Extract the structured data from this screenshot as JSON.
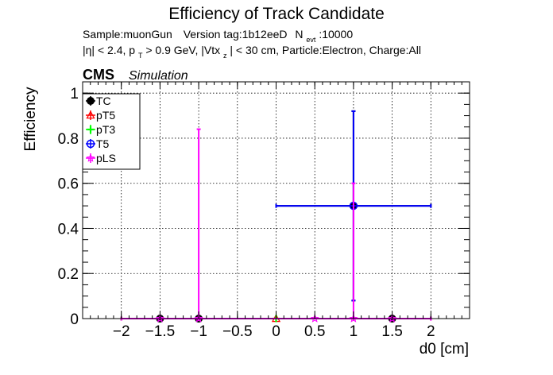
{
  "chart_data": {
    "type": "scatter",
    "title": "Efficiency of Track Candidate",
    "subtitle_line1": {
      "sample": "Sample:muonGun",
      "version": "Version tag:1b12eeD",
      "n_label": "N",
      "n_sub": "evt",
      "n_value": ":10000"
    },
    "subtitle_line2": {
      "eta": "|η| < 2.4, p",
      "pt_sub": "T",
      "pt_cut": " > 0.9 GeV, |Vtx",
      "vtx_sub": "z",
      "rest": "| < 30 cm, Particle:Electron, Charge:All"
    },
    "cms_label": "CMS",
    "simulation_label": "Simulation",
    "xlabel": "d0 [cm]",
    "ylabel": "Efficiency",
    "xlim": [
      -2.5,
      2.5
    ],
    "ylim": [
      0,
      1.05
    ],
    "xticks": [
      -2,
      -1.5,
      -1,
      -0.5,
      0,
      0.5,
      1,
      1.5,
      2
    ],
    "xtick_labels": [
      "−2",
      "−1.5",
      "−1",
      "−0.5",
      "0",
      "0.5",
      "1",
      "1.5",
      "2"
    ],
    "yticks": [
      0,
      0.2,
      0.4,
      0.6,
      0.8,
      1
    ],
    "ytick_labels": [
      "0",
      "0.2",
      "0.4",
      "0.6",
      "0.8",
      "1"
    ],
    "grid": true,
    "legend_position": "top-left",
    "series": [
      {
        "name": "TC",
        "color": "#000000",
        "marker": "circle",
        "points": [
          {
            "x": -1.5,
            "xerr": 0.5,
            "y": 0,
            "ylo": 0,
            "yhi": 0
          },
          {
            "x": -1,
            "xerr": 0,
            "y": 0,
            "ylo": 0,
            "yhi": 0
          },
          {
            "x": 1,
            "xerr": 1,
            "y": 0.5,
            "ylo": 0.08,
            "yhi": 0.92
          },
          {
            "x": 1.5,
            "xerr": 0.5,
            "y": 0,
            "ylo": 0,
            "yhi": 0
          }
        ]
      },
      {
        "name": "pT5",
        "color": "#ff0000",
        "marker": "triangle",
        "points": [
          {
            "x": 0,
            "xerr": 2,
            "y": 0,
            "ylo": 0,
            "yhi": 0
          }
        ]
      },
      {
        "name": "pT3",
        "color": "#00ff00",
        "marker": "cross",
        "points": [
          {
            "x": 0,
            "xerr": 2,
            "y": 0,
            "ylo": 0,
            "yhi": 0
          }
        ]
      },
      {
        "name": "T5",
        "color": "#0000ff",
        "marker": "circle-open",
        "points": [
          {
            "x": 1,
            "xerr": 1,
            "y": 0.5,
            "ylo": 0.08,
            "yhi": 0.92
          }
        ]
      },
      {
        "name": "pLS",
        "color": "#ff00ff",
        "marker": "star",
        "points": [
          {
            "x": -1.5,
            "xerr": 0.5,
            "y": 0,
            "ylo": 0,
            "yhi": 0
          },
          {
            "x": -1,
            "xerr": 0,
            "y": 0,
            "ylo": 0,
            "yhi": 0.84
          },
          {
            "x": 0.5,
            "xerr": 1.5,
            "y": 0,
            "ylo": 0,
            "yhi": 0
          },
          {
            "x": 1,
            "xerr": 0,
            "y": 0,
            "ylo": 0,
            "yhi": 0.6
          },
          {
            "x": 1.5,
            "xerr": 0.5,
            "y": 0,
            "ylo": 0,
            "yhi": 0
          }
        ]
      }
    ]
  }
}
